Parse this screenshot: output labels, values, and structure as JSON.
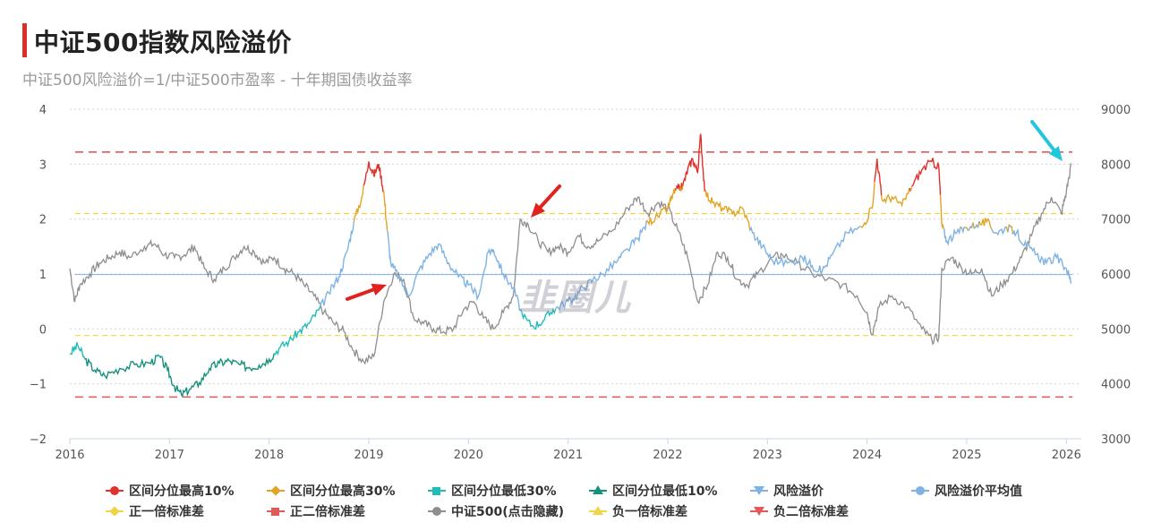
{
  "header": {
    "title": "中证500指数风险溢价",
    "subtitle": "中证500风险溢价=1/中证500市盈率 - 十年期国债收益率"
  },
  "watermark": "韭圈儿",
  "colors": {
    "top10": "#e0312a",
    "top30": "#e0a526",
    "bottom30": "#20bdb8",
    "bottom10": "#17917e",
    "premium": "#7fb3e3",
    "average": "#7fb3e3",
    "plus1sd": "#f0d44a",
    "plus2sd": "#e05a5a",
    "csi500": "#8e8e8e",
    "minus1sd": "#f0d44a",
    "minus2sd": "#e05a5a"
  },
  "chart_data": {
    "type": "line",
    "x_ticks": [
      "2016",
      "2017",
      "2018",
      "2019",
      "2020",
      "2021",
      "2022",
      "2023",
      "2024",
      "2025",
      "2026"
    ],
    "x_range": [
      2016.0,
      2026.15
    ],
    "y_left": {
      "ticks": [
        "4",
        "3",
        "2",
        "1",
        "0",
        "−1",
        "−2"
      ],
      "range": [
        -2,
        4
      ]
    },
    "y_right": {
      "ticks": [
        "9000",
        "8000",
        "7000",
        "6000",
        "5000",
        "4000",
        "3000"
      ],
      "range": [
        3000,
        9000
      ]
    },
    "reference_lines": {
      "average": 0.99,
      "plus1sd": 2.1,
      "plus2sd": 3.22,
      "minus1sd": -0.12,
      "minus2sd": -1.24
    },
    "thresholds": {
      "top10": 2.55,
      "top30": 1.85,
      "bottom30": 0.35,
      "bottom10": -0.5
    },
    "series": [
      {
        "name": "风险溢价",
        "axis": "left",
        "points": [
          [
            2016.0,
            -0.45
          ],
          [
            2016.08,
            -0.3
          ],
          [
            2016.15,
            -0.55
          ],
          [
            2016.25,
            -0.75
          ],
          [
            2016.35,
            -0.85
          ],
          [
            2016.5,
            -0.72
          ],
          [
            2016.65,
            -0.65
          ],
          [
            2016.8,
            -0.62
          ],
          [
            2016.9,
            -0.5
          ],
          [
            2016.98,
            -0.75
          ],
          [
            2017.05,
            -1.05
          ],
          [
            2017.12,
            -1.2
          ],
          [
            2017.2,
            -1.1
          ],
          [
            2017.3,
            -0.98
          ],
          [
            2017.4,
            -0.72
          ],
          [
            2017.5,
            -0.62
          ],
          [
            2017.6,
            -0.58
          ],
          [
            2017.7,
            -0.65
          ],
          [
            2017.8,
            -0.7
          ],
          [
            2017.9,
            -0.66
          ],
          [
            2018.0,
            -0.55
          ],
          [
            2018.1,
            -0.35
          ],
          [
            2018.2,
            -0.22
          ],
          [
            2018.3,
            -0.05
          ],
          [
            2018.4,
            0.1
          ],
          [
            2018.5,
            0.35
          ],
          [
            2018.6,
            0.65
          ],
          [
            2018.7,
            0.95
          ],
          [
            2018.78,
            1.4
          ],
          [
            2018.85,
            1.95
          ],
          [
            2018.93,
            2.4
          ],
          [
            2019.0,
            3.05
          ],
          [
            2019.05,
            2.8
          ],
          [
            2019.1,
            3.0
          ],
          [
            2019.15,
            2.5
          ],
          [
            2019.18,
            1.9
          ],
          [
            2019.22,
            1.2
          ],
          [
            2019.3,
            0.95
          ],
          [
            2019.4,
            0.6
          ],
          [
            2019.5,
            1.05
          ],
          [
            2019.6,
            1.35
          ],
          [
            2019.7,
            1.55
          ],
          [
            2019.8,
            1.2
          ],
          [
            2019.9,
            0.95
          ],
          [
            2020.0,
            0.8
          ],
          [
            2020.1,
            0.6
          ],
          [
            2020.2,
            1.4
          ],
          [
            2020.25,
            1.45
          ],
          [
            2020.35,
            1.0
          ],
          [
            2020.45,
            0.75
          ],
          [
            2020.55,
            0.2
          ],
          [
            2020.65,
            0.05
          ],
          [
            2020.75,
            0.15
          ],
          [
            2020.85,
            0.35
          ],
          [
            2020.95,
            0.45
          ],
          [
            2021.05,
            0.55
          ],
          [
            2021.15,
            0.75
          ],
          [
            2021.25,
            0.9
          ],
          [
            2021.35,
            1.0
          ],
          [
            2021.5,
            1.25
          ],
          [
            2021.6,
            1.45
          ],
          [
            2021.7,
            1.65
          ],
          [
            2021.8,
            1.95
          ],
          [
            2021.9,
            2.05
          ],
          [
            2022.0,
            2.2
          ],
          [
            2022.05,
            2.45
          ],
          [
            2022.1,
            2.55
          ],
          [
            2022.15,
            2.6
          ],
          [
            2022.2,
            2.9
          ],
          [
            2022.25,
            3.1
          ],
          [
            2022.3,
            2.85
          ],
          [
            2022.33,
            3.55
          ],
          [
            2022.37,
            2.5
          ],
          [
            2022.45,
            2.3
          ],
          [
            2022.55,
            2.2
          ],
          [
            2022.65,
            2.1
          ],
          [
            2022.75,
            2.2
          ],
          [
            2022.85,
            1.75
          ],
          [
            2022.95,
            1.5
          ],
          [
            2023.05,
            1.25
          ],
          [
            2023.2,
            1.2
          ],
          [
            2023.35,
            1.3
          ],
          [
            2023.45,
            1.15
          ],
          [
            2023.55,
            1.05
          ],
          [
            2023.65,
            1.35
          ],
          [
            2023.8,
            1.75
          ],
          [
            2023.95,
            1.85
          ],
          [
            2024.05,
            2.2
          ],
          [
            2024.1,
            3.1
          ],
          [
            2024.15,
            2.35
          ],
          [
            2024.25,
            2.4
          ],
          [
            2024.35,
            2.25
          ],
          [
            2024.45,
            2.6
          ],
          [
            2024.55,
            2.9
          ],
          [
            2024.65,
            3.05
          ],
          [
            2024.72,
            2.95
          ],
          [
            2024.75,
            1.9
          ],
          [
            2024.8,
            1.6
          ],
          [
            2024.9,
            1.75
          ],
          [
            2025.0,
            1.85
          ],
          [
            2025.1,
            1.9
          ],
          [
            2025.2,
            1.95
          ],
          [
            2025.3,
            1.75
          ],
          [
            2025.4,
            1.85
          ],
          [
            2025.5,
            1.75
          ],
          [
            2025.6,
            1.5
          ],
          [
            2025.7,
            1.35
          ],
          [
            2025.8,
            1.2
          ],
          [
            2025.9,
            1.3
          ],
          [
            2026.0,
            1.1
          ],
          [
            2026.05,
            0.85
          ]
        ]
      },
      {
        "name": "中证500(点击隐藏)",
        "axis": "right",
        "points": [
          [
            2016.0,
            6100
          ],
          [
            2016.05,
            5500
          ],
          [
            2016.1,
            5800
          ],
          [
            2016.2,
            6000
          ],
          [
            2016.3,
            6200
          ],
          [
            2016.4,
            6300
          ],
          [
            2016.5,
            6400
          ],
          [
            2016.6,
            6300
          ],
          [
            2016.75,
            6500
          ],
          [
            2016.85,
            6550
          ],
          [
            2016.95,
            6350
          ],
          [
            2017.05,
            6300
          ],
          [
            2017.15,
            6350
          ],
          [
            2017.25,
            6500
          ],
          [
            2017.35,
            6100
          ],
          [
            2017.45,
            5900
          ],
          [
            2017.55,
            6100
          ],
          [
            2017.65,
            6300
          ],
          [
            2017.75,
            6500
          ],
          [
            2017.85,
            6400
          ],
          [
            2017.95,
            6200
          ],
          [
            2018.05,
            6300
          ],
          [
            2018.15,
            6100
          ],
          [
            2018.25,
            6000
          ],
          [
            2018.35,
            5800
          ],
          [
            2018.45,
            5600
          ],
          [
            2018.55,
            5300
          ],
          [
            2018.65,
            5100
          ],
          [
            2018.75,
            4950
          ],
          [
            2018.85,
            4600
          ],
          [
            2018.95,
            4400
          ],
          [
            2019.05,
            4500
          ],
          [
            2019.15,
            5500
          ],
          [
            2019.25,
            6000
          ],
          [
            2019.35,
            5900
          ],
          [
            2019.45,
            5200
          ],
          [
            2019.55,
            5100
          ],
          [
            2019.65,
            5000
          ],
          [
            2019.75,
            4950
          ],
          [
            2019.85,
            5000
          ],
          [
            2019.95,
            5350
          ],
          [
            2020.05,
            5500
          ],
          [
            2020.15,
            5200
          ],
          [
            2020.25,
            5000
          ],
          [
            2020.35,
            5300
          ],
          [
            2020.45,
            5600
          ],
          [
            2020.52,
            7000
          ],
          [
            2020.6,
            6900
          ],
          [
            2020.7,
            6600
          ],
          [
            2020.8,
            6400
          ],
          [
            2020.9,
            6500
          ],
          [
            2021.0,
            6400
          ],
          [
            2021.1,
            6700
          ],
          [
            2021.2,
            6500
          ],
          [
            2021.3,
            6600
          ],
          [
            2021.45,
            6800
          ],
          [
            2021.6,
            7200
          ],
          [
            2021.7,
            7400
          ],
          [
            2021.8,
            7100
          ],
          [
            2021.9,
            7300
          ],
          [
            2022.0,
            7200
          ],
          [
            2022.1,
            6800
          ],
          [
            2022.2,
            6300
          ],
          [
            2022.3,
            5500
          ],
          [
            2022.4,
            5800
          ],
          [
            2022.5,
            6400
          ],
          [
            2022.6,
            6300
          ],
          [
            2022.7,
            5900
          ],
          [
            2022.8,
            5800
          ],
          [
            2022.9,
            6000
          ],
          [
            2023.05,
            6300
          ],
          [
            2023.15,
            6350
          ],
          [
            2023.3,
            6200
          ],
          [
            2023.45,
            6000
          ],
          [
            2023.6,
            5900
          ],
          [
            2023.75,
            5800
          ],
          [
            2023.9,
            5600
          ],
          [
            2024.0,
            5300
          ],
          [
            2024.05,
            4900
          ],
          [
            2024.12,
            5400
          ],
          [
            2024.25,
            5600
          ],
          [
            2024.4,
            5400
          ],
          [
            2024.55,
            5000
          ],
          [
            2024.65,
            4800
          ],
          [
            2024.72,
            4850
          ],
          [
            2024.75,
            6100
          ],
          [
            2024.85,
            6300
          ],
          [
            2024.95,
            6100
          ],
          [
            2025.05,
            6000
          ],
          [
            2025.15,
            6100
          ],
          [
            2025.25,
            5600
          ],
          [
            2025.35,
            5800
          ],
          [
            2025.45,
            6000
          ],
          [
            2025.55,
            6300
          ],
          [
            2025.65,
            6700
          ],
          [
            2025.75,
            7100
          ],
          [
            2025.85,
            7400
          ],
          [
            2025.95,
            7100
          ],
          [
            2026.0,
            7500
          ],
          [
            2026.05,
            8000
          ]
        ]
      }
    ],
    "legend": [
      {
        "label": "区间分位最高10%",
        "color_key": "top10",
        "marker": "circle"
      },
      {
        "label": "区间分位最高30%",
        "color_key": "top30",
        "marker": "diamond"
      },
      {
        "label": "区间分位最低30%",
        "color_key": "bottom30",
        "marker": "square"
      },
      {
        "label": "区间分位最低10%",
        "color_key": "bottom10",
        "marker": "tri"
      },
      {
        "label": "风险溢价",
        "color_key": "premium",
        "marker": "tri-down"
      },
      {
        "label": "风险溢价平均值",
        "color_key": "average",
        "marker": "circle"
      },
      {
        "label": "正一倍标准差",
        "color_key": "plus1sd",
        "marker": "diamond"
      },
      {
        "label": "正二倍标准差",
        "color_key": "plus2sd",
        "marker": "square"
      },
      {
        "label": "中证500(点击隐藏)",
        "color_key": "csi500",
        "marker": "circle"
      },
      {
        "label": "负一倍标准差",
        "color_key": "minus1sd",
        "marker": "tri"
      },
      {
        "label": "负二倍标准差",
        "color_key": "minus2sd",
        "marker": "tri-down"
      }
    ]
  }
}
